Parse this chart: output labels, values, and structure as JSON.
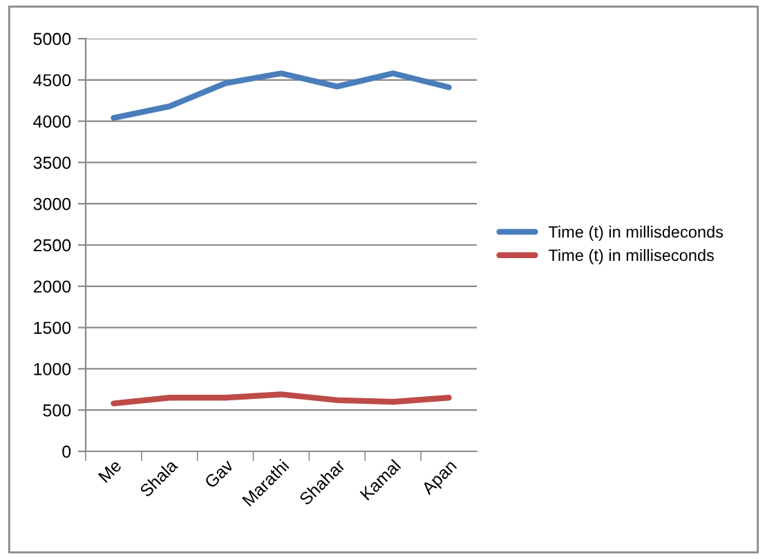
{
  "chart_data": {
    "type": "line",
    "categories": [
      "Me",
      "Shala",
      "Gav",
      "Marathi",
      "Shahar",
      "Kamal",
      "Apan"
    ],
    "series": [
      {
        "name": "Time (t) in millisdeconds",
        "color": "#4a7ebb",
        "values": [
          4040,
          4180,
          4460,
          4580,
          4420,
          4580,
          4410
        ]
      },
      {
        "name": "Time (t) in milliseconds",
        "color": "#be4b48",
        "values": [
          580,
          650,
          650,
          690,
          620,
          600,
          650
        ]
      }
    ],
    "ylim": [
      0,
      5000
    ],
    "yticks": [
      0,
      500,
      1000,
      1500,
      2000,
      2500,
      3000,
      3500,
      4000,
      4500,
      5000
    ],
    "grid": "y",
    "legend": "right",
    "marker": "none",
    "line_style": "solid"
  }
}
